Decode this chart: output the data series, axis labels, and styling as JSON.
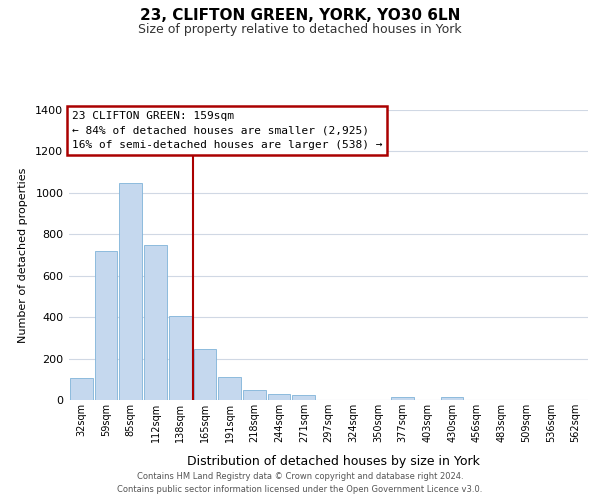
{
  "title": "23, CLIFTON GREEN, YORK, YO30 6LN",
  "subtitle": "Size of property relative to detached houses in York",
  "xlabel": "Distribution of detached houses by size in York",
  "ylabel": "Number of detached properties",
  "bar_labels": [
    "32sqm",
    "59sqm",
    "85sqm",
    "112sqm",
    "138sqm",
    "165sqm",
    "191sqm",
    "218sqm",
    "244sqm",
    "271sqm",
    "297sqm",
    "324sqm",
    "350sqm",
    "377sqm",
    "403sqm",
    "430sqm",
    "456sqm",
    "483sqm",
    "509sqm",
    "536sqm",
    "562sqm"
  ],
  "bar_values": [
    107,
    720,
    1050,
    748,
    405,
    245,
    110,
    50,
    28,
    22,
    0,
    0,
    0,
    15,
    0,
    15,
    0,
    0,
    0,
    0,
    0
  ],
  "bar_color": "#c5d8ee",
  "bar_edge_color": "#7fb3d9",
  "property_line_idx": 5,
  "property_line_color": "#aa0000",
  "ylim": [
    0,
    1400
  ],
  "yticks": [
    0,
    200,
    400,
    600,
    800,
    1000,
    1200,
    1400
  ],
  "annotation_title": "23 CLIFTON GREEN: 159sqm",
  "annotation_line1": "← 84% of detached houses are smaller (2,925)",
  "annotation_line2": "16% of semi-detached houses are larger (538) →",
  "annotation_box_color": "#ffffff",
  "annotation_box_edge": "#aa0000",
  "footer_line1": "Contains HM Land Registry data © Crown copyright and database right 2024.",
  "footer_line2": "Contains public sector information licensed under the Open Government Licence v3.0.",
  "background_color": "#ffffff",
  "grid_color": "#d0d8e4"
}
